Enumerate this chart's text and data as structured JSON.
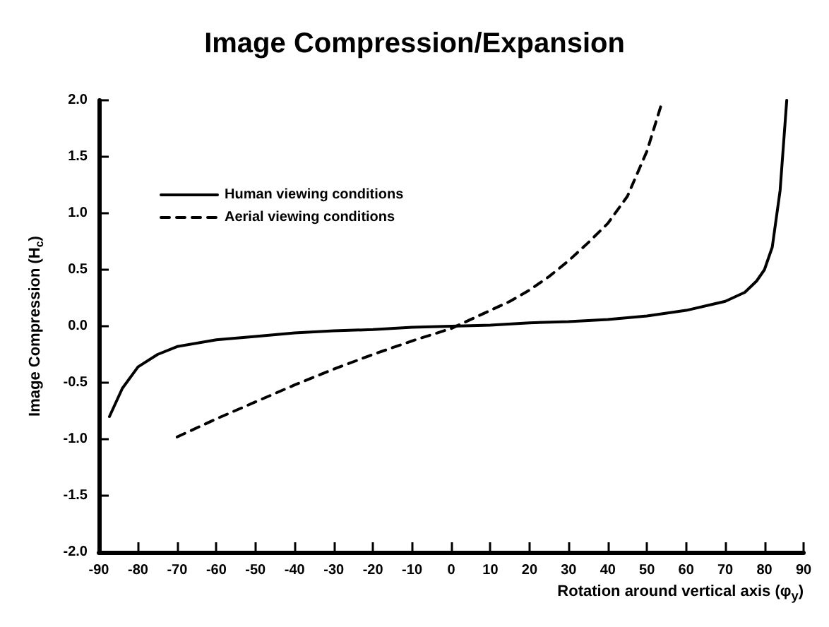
{
  "chart_data": {
    "type": "line",
    "title": "Image Compression/Expansion",
    "xlabel": "Rotation around vertical axis (φ$_{y}$)",
    "ylabel": "Image Compression (H$_{c}$)",
    "xlim": [
      -90,
      90
    ],
    "xticks": [
      -90,
      -80,
      -70,
      -60,
      -50,
      -40,
      -30,
      -20,
      -10,
      0,
      10,
      20,
      30,
      40,
      50,
      60,
      70,
      80,
      90
    ],
    "ylim": [
      -2,
      2
    ],
    "yticks": [
      {
        "value": -2,
        "label": "-2.0"
      },
      {
        "value": -1.5,
        "label": "-1.5"
      },
      {
        "value": -1,
        "label": "-1.0"
      },
      {
        "value": -0.5,
        "label": "-0.5"
      },
      {
        "value": 0,
        "label": "0.0"
      },
      {
        "value": 0.5,
        "label": "0.5"
      },
      {
        "value": 1,
        "label": "1.0"
      },
      {
        "value": 1.5,
        "label": "1.5"
      },
      {
        "value": 2,
        "label": "2.0"
      }
    ],
    "grid": false,
    "legend": "top left",
    "marker": "none",
    "series": [
      {
        "name": "Human viewing conditions",
        "color": "#000000",
        "line_style": "solid",
        "x": [
          -87.3,
          -84,
          -80,
          -75,
          -70,
          -60,
          -50,
          -40,
          -30,
          -20,
          -10,
          0,
          10,
          20,
          30,
          40,
          50,
          60,
          70,
          75,
          78,
          80,
          82,
          84,
          85.7
        ],
        "values": [
          -0.8,
          -0.55,
          -0.36,
          -0.25,
          -0.18,
          -0.12,
          -0.09,
          -0.06,
          -0.04,
          -0.03,
          -0.01,
          0,
          0.01,
          0.03,
          0.04,
          0.06,
          0.09,
          0.14,
          0.22,
          0.3,
          0.4,
          0.5,
          0.7,
          1.2,
          2.0
        ]
      },
      {
        "name": "Aerial viewing conditions",
        "color": "#000000",
        "line_style": "dashed",
        "x": [
          -70,
          -60,
          -50,
          -40,
          -30,
          -20,
          -10,
          0,
          5,
          10,
          15,
          20,
          25,
          30,
          35,
          40,
          45,
          50,
          54
        ],
        "values": [
          -0.98,
          -0.82,
          -0.67,
          -0.52,
          -0.38,
          -0.25,
          -0.13,
          -0.02,
          0.06,
          0.14,
          0.22,
          0.32,
          0.44,
          0.58,
          0.74,
          0.91,
          1.15,
          1.55,
          2.0
        ]
      }
    ]
  }
}
